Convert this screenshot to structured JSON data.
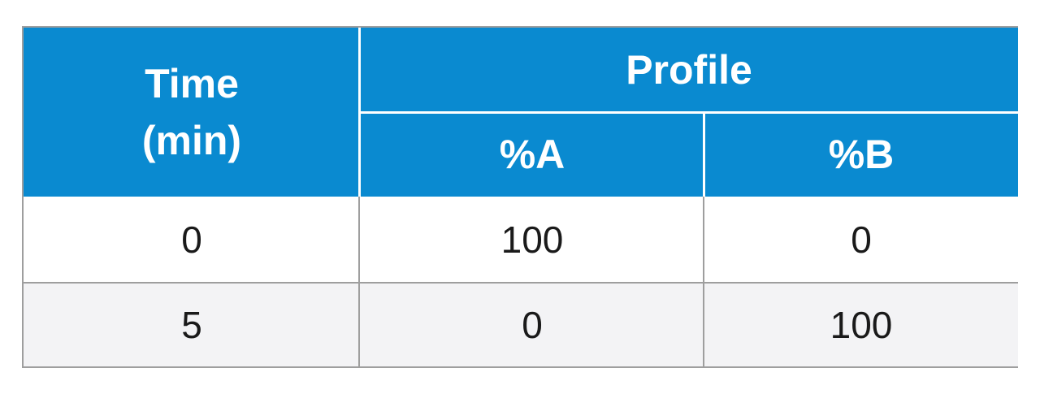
{
  "table": {
    "header": {
      "time": "Time\n(min)",
      "profile": "Profile",
      "columns": [
        "%A",
        "%B"
      ]
    },
    "rows": [
      [
        "0",
        "100",
        "0"
      ],
      [
        "5",
        "0",
        "100"
      ]
    ]
  }
}
